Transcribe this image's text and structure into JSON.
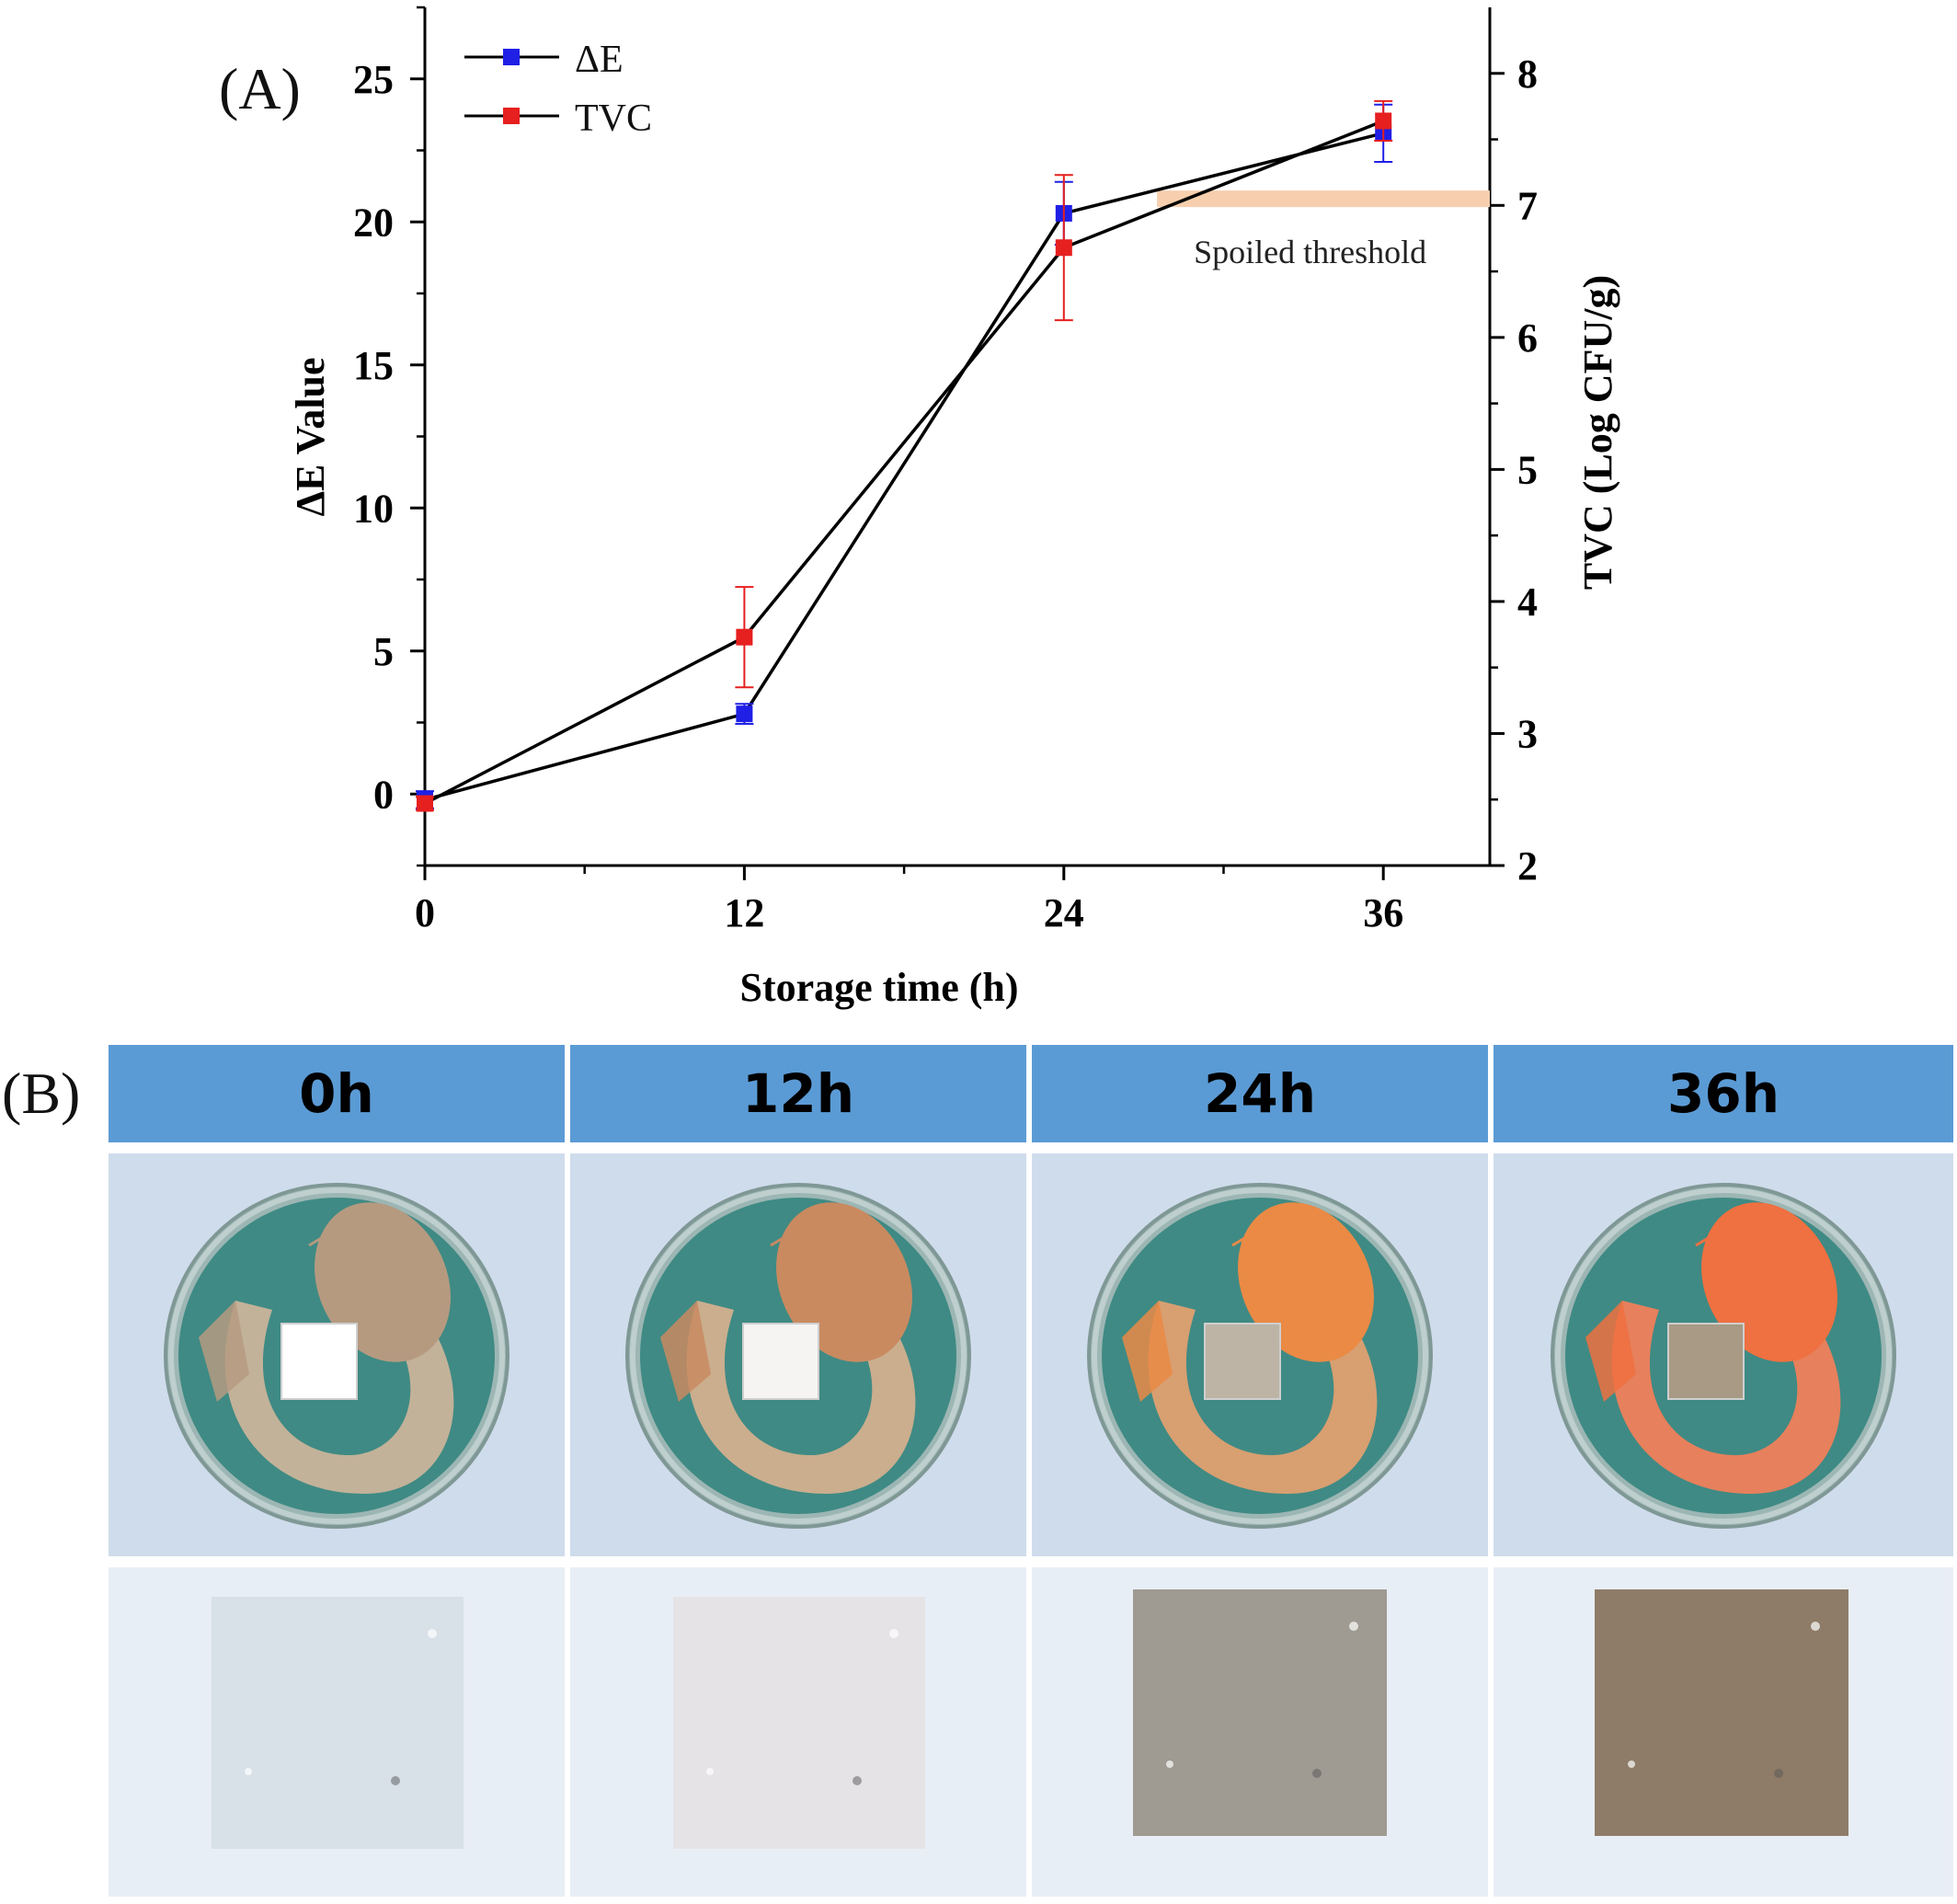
{
  "panel_labels": {
    "a": "(A)",
    "b": "(B)"
  },
  "chart_data": {
    "type": "line",
    "x": [
      0,
      12,
      24,
      36
    ],
    "xlabel": "Storage time (h)",
    "xlim": [
      0,
      40
    ],
    "xticks": [
      0,
      12,
      24,
      36
    ],
    "ylabel": "ΔE Value",
    "ylim": [
      -2.5,
      27.5
    ],
    "yticks": [
      0,
      5,
      10,
      15,
      20,
      25
    ],
    "y2label": "TVC (Log CFU/g)",
    "y2lim": [
      2,
      8.5
    ],
    "y2ticks": [
      2,
      3,
      4,
      5,
      6,
      7,
      8
    ],
    "series": [
      {
        "name": "ΔE",
        "axis": "left",
        "color": "#1f1fe6",
        "values": [
          -0.2,
          2.8,
          20.3,
          23.1
        ],
        "errors": [
          0.3,
          0.35,
          1.1,
          1.0
        ]
      },
      {
        "name": "TVC",
        "axis": "right",
        "color": "#e61f1f",
        "values": [
          2.47,
          3.73,
          6.68,
          7.64
        ],
        "errors": [
          0.05,
          0.38,
          0.55,
          0.15
        ]
      }
    ],
    "annotations": [
      {
        "text": "Spoiled  threshold",
        "y2": 7.05,
        "x_from": 27.5,
        "x_to": 40,
        "color": "#f7cfae"
      }
    ],
    "legend_position": "top-left",
    "grid": false
  },
  "panel_b": {
    "headers": [
      "0h",
      "12h",
      "24h",
      "36h"
    ],
    "shrimp_photos": [
      {
        "body": "#c9b49a",
        "head": "#b59a80",
        "film": "#ffffff"
      },
      {
        "body": "#d2b08e",
        "head": "#c98a60",
        "film": "#f6f4f2"
      },
      {
        "body": "#e0a070",
        "head": "#ea8a45",
        "film": "#bdb4a6"
      },
      {
        "body": "#f0805a",
        "head": "#ef7040",
        "film": "#a89a84"
      }
    ],
    "film_swatches": [
      "#d8e0e8",
      "#e6e3e6",
      "#9f9a92",
      "#8e7c68"
    ],
    "colors": {
      "header": "#5b9bd5",
      "dish": "#3f8a84",
      "row1_bg": "#cfdcec",
      "row2_bg": "#e8eef6"
    }
  }
}
